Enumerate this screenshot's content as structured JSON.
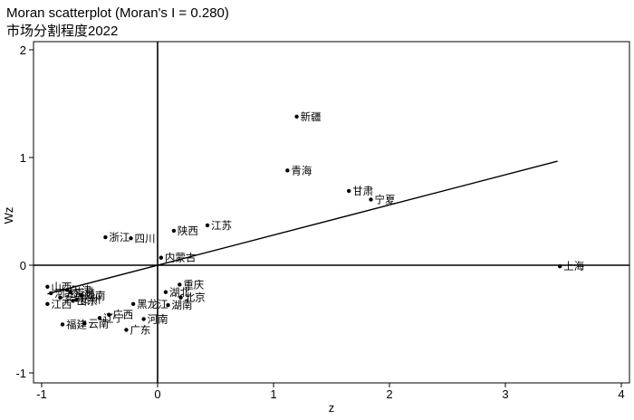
{
  "chart_data": {
    "type": "scatter",
    "title": "Moran scatterplot (Moran's I = 0.280)",
    "subtitle": "市场分割程度2022",
    "xlabel": "z",
    "ylabel": "Wz",
    "xlim": [
      -1.05,
      4.05
    ],
    "ylim": [
      -1.1,
      2.1
    ],
    "xticks": [
      -1,
      0,
      1,
      2,
      3,
      4
    ],
    "yticks": [
      -1,
      0,
      1,
      2
    ],
    "regression": {
      "slope": 0.28,
      "x_range": [
        -0.95,
        3.45
      ]
    },
    "points": [
      {
        "label": "新疆",
        "x": 1.2,
        "y": 1.38
      },
      {
        "label": "青海",
        "x": 1.12,
        "y": 0.88
      },
      {
        "label": "甘肃",
        "x": 1.65,
        "y": 0.69
      },
      {
        "label": "宁夏",
        "x": 1.84,
        "y": 0.61
      },
      {
        "label": "江苏",
        "x": 0.43,
        "y": 0.37
      },
      {
        "label": "陕西",
        "x": 0.14,
        "y": 0.32
      },
      {
        "label": "四川",
        "x": -0.23,
        "y": 0.25
      },
      {
        "label": "浙江",
        "x": -0.45,
        "y": 0.26
      },
      {
        "label": "内蒙古",
        "x": 0.03,
        "y": 0.07
      },
      {
        "label": "上海",
        "x": 3.47,
        "y": -0.01
      },
      {
        "label": "重庆",
        "x": 0.19,
        "y": -0.18
      },
      {
        "label": "湖北",
        "x": 0.07,
        "y": -0.25
      },
      {
        "label": "北京",
        "x": 0.2,
        "y": -0.3
      },
      {
        "label": "湖南",
        "x": 0.09,
        "y": -0.37
      },
      {
        "label": "黑龙江",
        "x": -0.21,
        "y": -0.36
      },
      {
        "label": "河南",
        "x": -0.12,
        "y": -0.5
      },
      {
        "label": "广东",
        "x": -0.27,
        "y": -0.6
      },
      {
        "label": "广西",
        "x": -0.42,
        "y": -0.46
      },
      {
        "label": "辽宁",
        "x": -0.5,
        "y": -0.49
      },
      {
        "label": "云南",
        "x": -0.63,
        "y": -0.54
      },
      {
        "label": "福建",
        "x": -0.82,
        "y": -0.55
      },
      {
        "label": "江西",
        "x": -0.95,
        "y": -0.36
      },
      {
        "label": "吉林",
        "x": -0.75,
        "y": -0.25
      },
      {
        "label": "山东",
        "x": -0.73,
        "y": -0.33
      },
      {
        "label": "天津",
        "x": -0.78,
        "y": -0.23
      },
      {
        "label": "山西",
        "x": -0.95,
        "y": -0.2
      },
      {
        "label": "河北",
        "x": -0.92,
        "y": -0.26
      },
      {
        "label": "安徽",
        "x": -0.84,
        "y": -0.3
      },
      {
        "label": "海南",
        "x": -0.66,
        "y": -0.28
      },
      {
        "label": "贵州",
        "x": -0.7,
        "y": -0.32
      }
    ]
  }
}
